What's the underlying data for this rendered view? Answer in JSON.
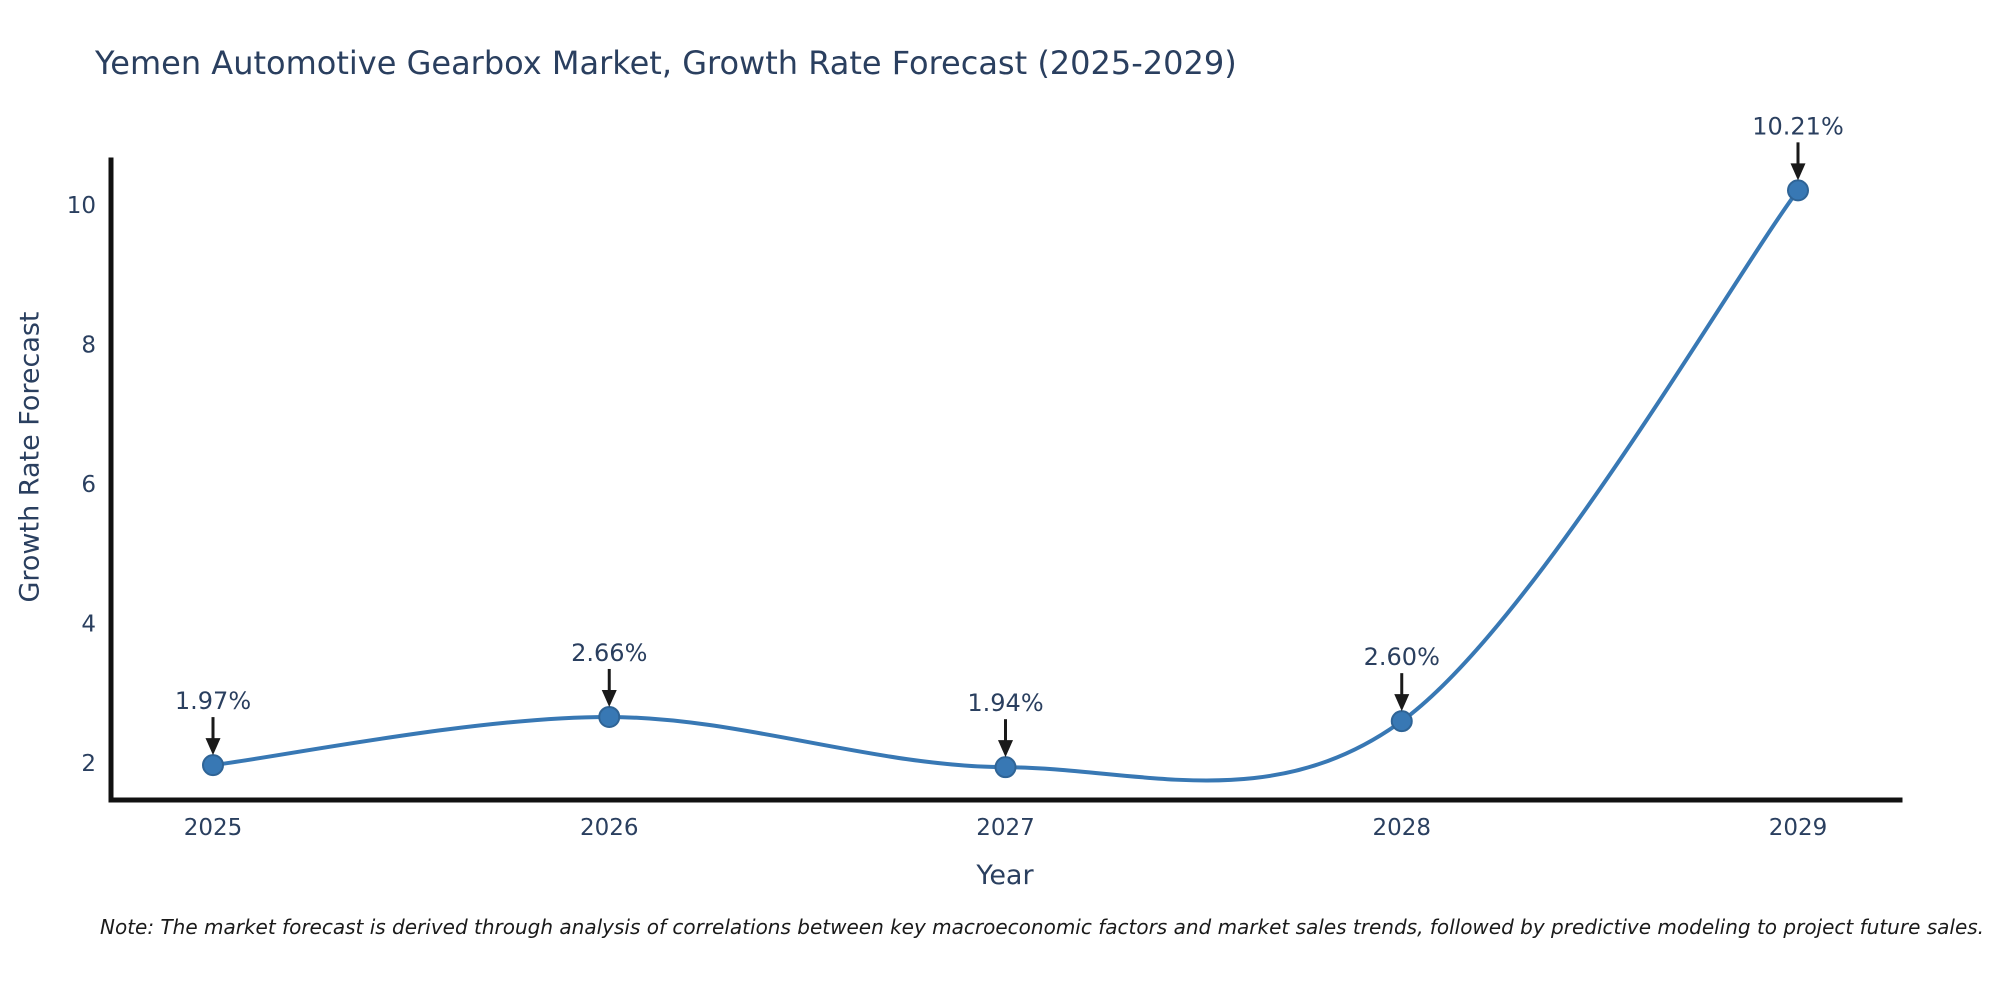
{
  "chart_data": {
    "type": "line",
    "title": "Yemen Automotive Gearbox Market, Growth Rate Forecast (2025-2029)",
    "xlabel": "Year",
    "ylabel": "Growth Rate Forecast",
    "categories": [
      "2025",
      "2026",
      "2027",
      "2028",
      "2029"
    ],
    "series": [
      {
        "name": "Growth Rate Forecast",
        "values": [
          1.97,
          2.66,
          1.94,
          2.6,
          10.21
        ],
        "point_labels": [
          "1.97%",
          "2.66%",
          "1.94%",
          "2.60%",
          "10.21%"
        ]
      }
    ],
    "line_shape": "spline",
    "markers": true,
    "yticks": [
      2,
      4,
      6,
      8,
      10
    ],
    "ylim": [
      1.45,
      10.65
    ],
    "grid": false,
    "legend_position": "none",
    "colors": {
      "line": "#3878b4",
      "marker_fill": "#3878b4",
      "marker_stroke": "#2f6496",
      "axis": "#111111",
      "tick_text": "#2a3f5f",
      "annotation_text": "#2a3f5f",
      "arrow": "#1a1a1a",
      "background": "#ffffff"
    }
  },
  "note": {
    "text": "Note: The market forecast is derived through analysis of correlations between key macroeconomic factors and market sales trends, followed by predictive modeling to project future sales."
  }
}
